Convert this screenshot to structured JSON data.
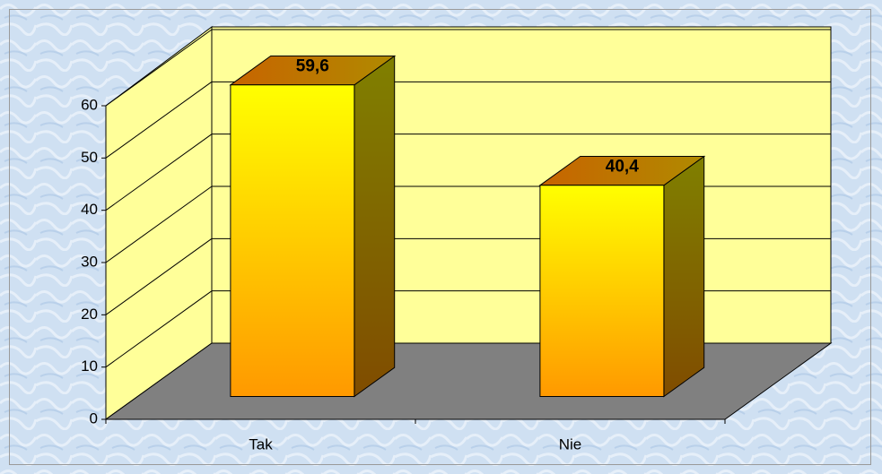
{
  "chart_data": {
    "type": "bar3d",
    "categories": [
      "Tak",
      "Nie"
    ],
    "values": [
      59.6,
      40.4
    ],
    "value_labels": [
      "59,6",
      "40,4"
    ],
    "ylim": [
      0,
      60
    ],
    "yticks": [
      0,
      10,
      20,
      30,
      40,
      50,
      60
    ],
    "grid": true
  }
}
